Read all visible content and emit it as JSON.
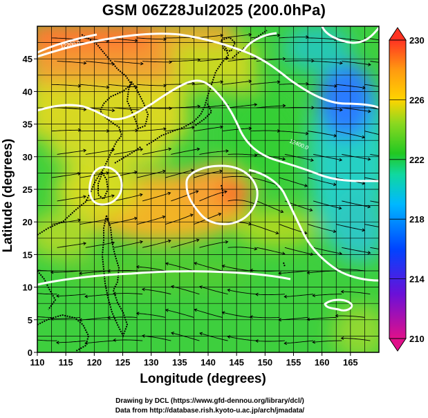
{
  "figure": {
    "title": "GSM 06Z28Jul2025 (200.0hPa)",
    "xlabel": "Longitude (degrees)",
    "ylabel": "Latitude (degrees)",
    "credit_line_1": "Drawing by DCL (https://www.gfd-dennou.org/library/dcl/)",
    "credit_line_2": "Data from http://database.rish.kyoto-u.ac.jp/arch/jmadata/"
  },
  "map": {
    "lon_range": [
      110,
      170
    ],
    "lat_range": [
      0,
      50
    ],
    "x_ticks": [
      "110",
      "115",
      "120",
      "125",
      "130",
      "135",
      "140",
      "145",
      "150",
      "155",
      "160",
      "165"
    ],
    "y_ticks": [
      "0",
      "5",
      "10",
      "15",
      "20",
      "25",
      "30",
      "35",
      "40",
      "45"
    ],
    "grid_step_degrees": 2.5,
    "variable": "temperature (colour) with streamlines and 1220-interval white contours",
    "contour_labels": [
      "12200.0",
      "12400.0"
    ]
  },
  "colorbar": {
    "min": 210,
    "max": 230,
    "labels": [
      "230",
      "226",
      "222",
      "218",
      "214",
      "210"
    ],
    "colors": [
      "#e0108a",
      "#0000ff",
      "#00aaff",
      "#00e0a0",
      "#22cc22",
      "#ffd400",
      "#ff9900",
      "#ff3322"
    ]
  },
  "colors": {
    "warm_core": "#ff6a2a",
    "warm": "#f5a030",
    "yellow": "#e6e020",
    "green": "#3ecf3e",
    "cyan": "#2ad6cf",
    "blue": "#2c7cff",
    "contour": "#ffffff",
    "coast": "#000000"
  }
}
